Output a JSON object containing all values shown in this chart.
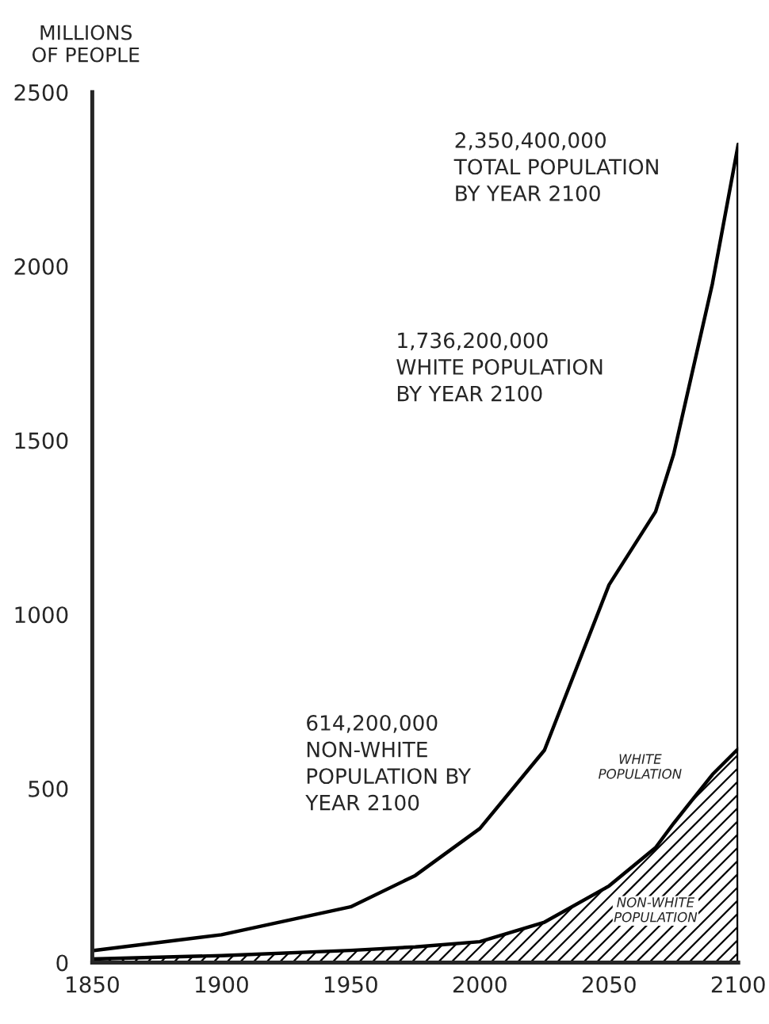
{
  "chart_data": {
    "type": "area",
    "stacked": true,
    "ylabel": "MILLIONS\nOF PEOPLE",
    "x": [
      1850,
      1900,
      1950,
      1975,
      2000,
      2025,
      2050,
      2068,
      2075,
      2090,
      2100
    ],
    "series": [
      {
        "name": "NON-WHITE\nPOPULATION",
        "color": "#000000",
        "values": [
          10,
          20,
          35,
          45,
          60,
          116,
          220,
          330,
          400,
          540,
          614
        ]
      },
      {
        "name": "WHITE\nPOPULATION",
        "color": "#ffffff",
        "values": [
          24,
          60,
          125,
          205,
          325,
          494,
          865,
          965,
          1060,
          1410,
          1736
        ]
      }
    ],
    "xlim": [
      1850,
      2100
    ],
    "xticks": [
      1850,
      1900,
      1950,
      2000,
      2050,
      2100
    ],
    "ylim": [
      0,
      2500
    ],
    "yticks": [
      0,
      500,
      1000,
      1500,
      2000,
      2500
    ],
    "grid": false,
    "legend": false,
    "annotations": [
      "2,350,400,000\nTOTAL POPULATION\nBY YEAR 2100",
      "1,736,200,000\nWHITE POPULATION\nBY YEAR 2100",
      "614,200,000\nNON-WHITE\nPOPULATION BY\nYEAR 2100"
    ]
  }
}
